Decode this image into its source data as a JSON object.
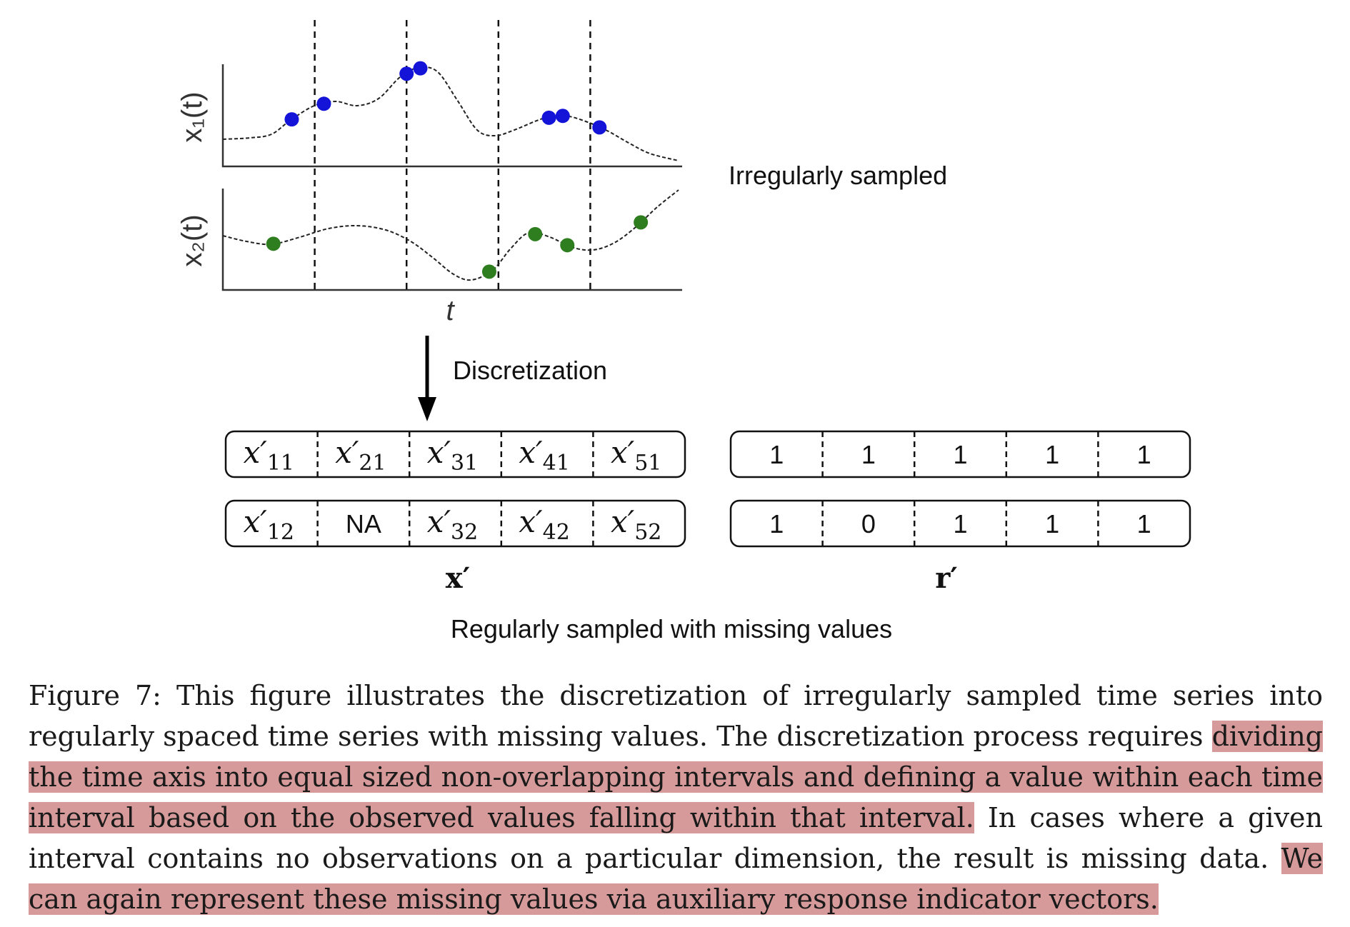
{
  "figure": {
    "top_plot": {
      "x1_label": "x₁(t)",
      "x2_label": "x₂(t)",
      "t_label": "t",
      "annotation": "Irregularly sampled",
      "colors": {
        "x1_points": "#1414d8",
        "x2_points": "#2e7d1f",
        "curve": "#222222"
      },
      "x1_points_rel_t": [
        0.15,
        0.22,
        0.4,
        0.43,
        0.71,
        0.74,
        0.82
      ],
      "x2_points_rel_t": [
        0.11,
        0.58,
        0.68,
        0.75,
        0.91
      ]
    },
    "arrow_label": "Discretization",
    "x_matrix": {
      "row1": [
        "x′11",
        "x′21",
        "x′31",
        "x′41",
        "x′51"
      ],
      "row2": [
        "x′12",
        "NA",
        "x′32",
        "x′42",
        "x′52"
      ],
      "label": "x′"
    },
    "r_matrix": {
      "row1": [
        "1",
        "1",
        "1",
        "1",
        "1"
      ],
      "row2": [
        "1",
        "0",
        "1",
        "1",
        "1"
      ],
      "label": "r′"
    },
    "bottom_annotation": "Regularly sampled with missing values"
  },
  "caption": {
    "seg1": "Figure 7: This figure illustrates the discretization of irregularly sampled time series into regularly spaced time series with missing values. The discretization process requires ",
    "seg2_highlight": "dividing the time axis into equal sized non-overlapping intervals and defining a value within each time interval based on the observed values falling within that interval.",
    "seg3": " In cases where a given interval contains no observations on a particular dimension, the result is missing data. ",
    "seg4_highlight": "We can again represent these missing values via auxiliary response indicator vectors."
  }
}
